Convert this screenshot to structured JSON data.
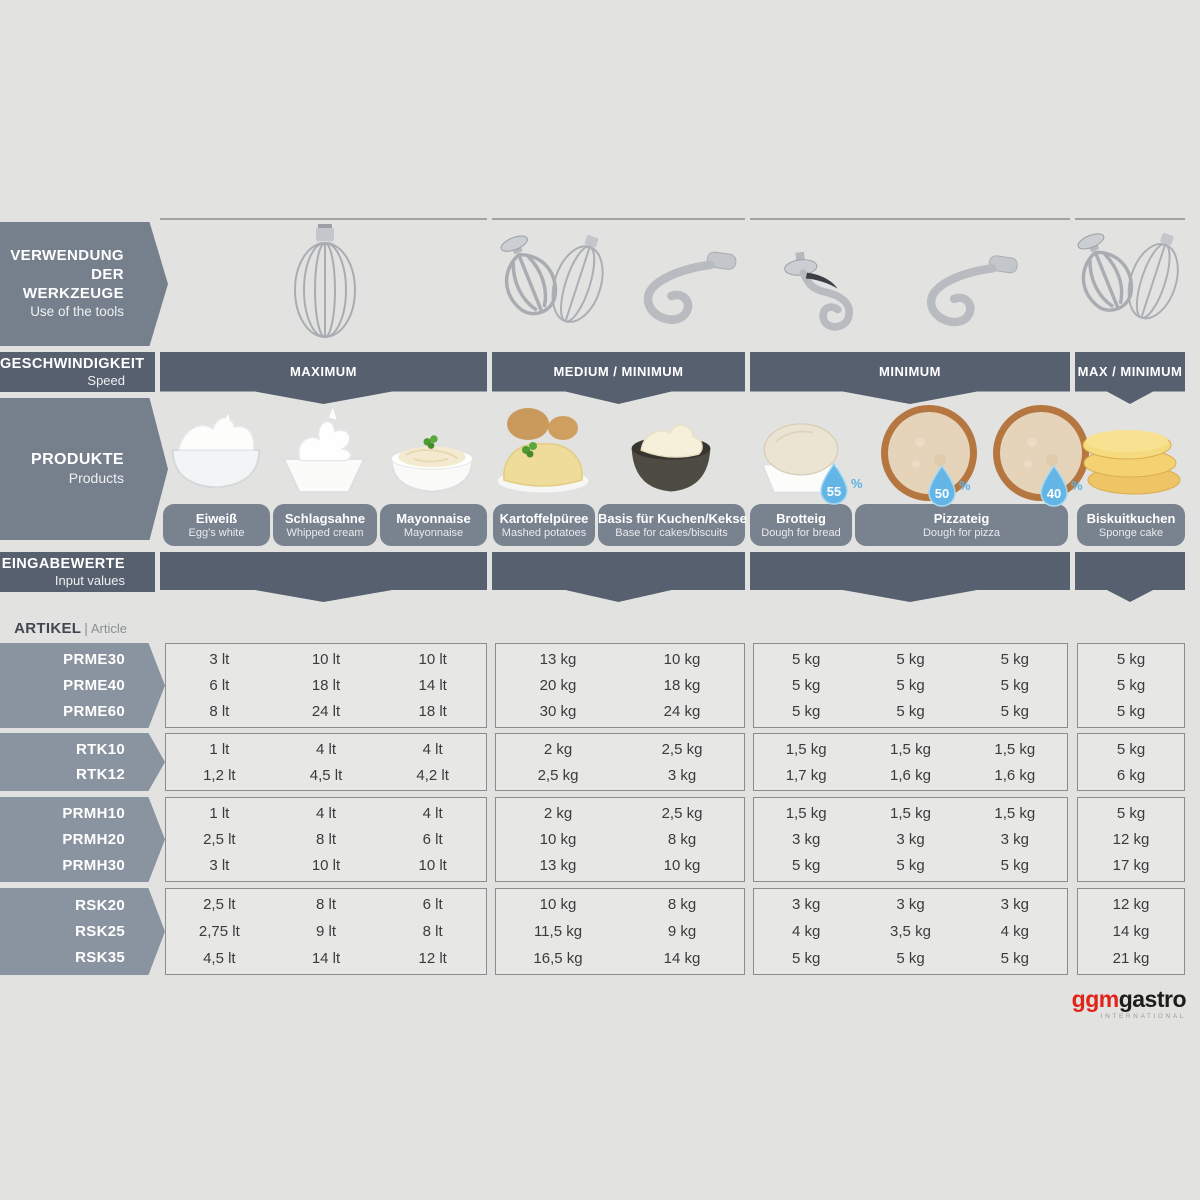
{
  "colors": {
    "background": "#e2e2e1",
    "dark_slate": "#57606e",
    "medium_slate": "#76808d",
    "row_label_slate": "#8a94a1",
    "pill_slate": "#79828f",
    "cell_bg": "#e7e7e6",
    "cell_border": "#8c8c8c",
    "drop_blue": "#62b5e5",
    "logo_red": "#e2231a"
  },
  "left_labels": {
    "tools_de": "VERWENDUNG",
    "tools_de2": "DER WERKZEUGE",
    "tools_en": "Use of the tools",
    "speed_de": "GESCHWINDIGKEIT",
    "speed_en": "Speed",
    "products_de": "PRODUKTE",
    "products_en": "Products",
    "input_de": "EINGABEWERTE",
    "input_en": "Input values",
    "article_de": "ARTIKEL",
    "article_sep": "|",
    "article_en": "Article"
  },
  "tool_groups": [
    {
      "icons": [
        "balloon-whisk"
      ]
    },
    {
      "icons": [
        "beater-whisk",
        "spiral-hook"
      ]
    },
    {
      "icons": [
        "dough-hook",
        "spiral-hook"
      ]
    },
    {
      "icons": [
        "beater-whisk"
      ]
    }
  ],
  "speed_groups": [
    {
      "label": "MAXIMUM"
    },
    {
      "label": "MEDIUM / MINIMUM"
    },
    {
      "label": "MINIMUM"
    },
    {
      "label": "MAX / MINIMUM"
    }
  ],
  "products": [
    {
      "name_de": "Eiweiß",
      "name_en": "Egg's white",
      "icon": "egg-white-bowl"
    },
    {
      "name_de": "Schlagsahne",
      "name_en": "Whipped cream",
      "icon": "whipped-cream-bowl"
    },
    {
      "name_de": "Mayonnaise",
      "name_en": "Mayonnaise",
      "icon": "mayonnaise-bowl"
    },
    {
      "name_de": "Kartoffelpüree",
      "name_en": "Mashed potatoes",
      "icon": "mashed-potatoes-plate"
    },
    {
      "name_de": "Basis für Kuchen/Kekse",
      "name_en": "Base for cakes/biscuits",
      "icon": "cake-base-bowl"
    },
    {
      "name_de": "Brotteig",
      "name_en": "Dough for bread",
      "icon": "bread-dough-bowl",
      "hydration": "55"
    },
    {
      "name_de": "Pizzateig",
      "name_en": "Dough for pizza",
      "icon": "pizza-dough",
      "hydration": [
        "50",
        "40"
      ]
    },
    {
      "name_de": "Biskuitkuchen",
      "name_en": "Sponge cake",
      "icon": "sponge-cake"
    }
  ],
  "hydration_unit": "%",
  "article_groups": [
    {
      "articles": [
        "PRME30",
        "PRME40",
        "PRME60"
      ],
      "values": [
        [
          "3 lt",
          "10 lt",
          "10 lt",
          "13 kg",
          "10 kg",
          "5 kg",
          "5 kg",
          "5 kg",
          "5 kg"
        ],
        [
          "6 lt",
          "18 lt",
          "14 lt",
          "20 kg",
          "18 kg",
          "5 kg",
          "5 kg",
          "5 kg",
          "5 kg"
        ],
        [
          "8 lt",
          "24 lt",
          "18 lt",
          "30 kg",
          "24 kg",
          "5 kg",
          "5 kg",
          "5 kg",
          "5 kg"
        ]
      ]
    },
    {
      "articles": [
        "RTK10",
        "RTK12"
      ],
      "values": [
        [
          "1 lt",
          "4 lt",
          "4 lt",
          "2 kg",
          "2,5 kg",
          "1,5 kg",
          "1,5 kg",
          "1,5 kg",
          "5 kg"
        ],
        [
          "1,2 lt",
          "4,5 lt",
          "4,2 lt",
          "2,5 kg",
          "3 kg",
          "1,7 kg",
          "1,6 kg",
          "1,6 kg",
          "6 kg"
        ]
      ]
    },
    {
      "articles": [
        "PRMH10",
        "PRMH20",
        "PRMH30"
      ],
      "values": [
        [
          "1 lt",
          "4 lt",
          "4 lt",
          "2 kg",
          "2,5 kg",
          "1,5 kg",
          "1,5 kg",
          "1,5 kg",
          "5 kg"
        ],
        [
          "2,5 lt",
          "8 lt",
          "6 lt",
          "10 kg",
          "8 kg",
          "3 kg",
          "3 kg",
          "3 kg",
          "12 kg"
        ],
        [
          "3 lt",
          "10 lt",
          "10 lt",
          "13 kg",
          "10 kg",
          "5 kg",
          "5 kg",
          "5 kg",
          "17 kg"
        ]
      ]
    },
    {
      "articles": [
        "RSK20",
        "RSK25",
        "RSK35"
      ],
      "values": [
        [
          "2,5 lt",
          "8 lt",
          "6 lt",
          "10 kg",
          "8 kg",
          "3 kg",
          "3 kg",
          "3 kg",
          "12 kg"
        ],
        [
          "2,75 lt",
          "9 lt",
          "8 lt",
          "11,5 kg",
          "9 kg",
          "4 kg",
          "3,5 kg",
          "4 kg",
          "14 kg"
        ],
        [
          "4,5 lt",
          "14 lt",
          "12 lt",
          "16,5 kg",
          "14 kg",
          "5 kg",
          "5 kg",
          "5 kg",
          "21 kg"
        ]
      ]
    }
  ],
  "logo": {
    "part1": "ggm",
    "part2": "gastro",
    "subtitle": "INTERNATIONAL"
  }
}
